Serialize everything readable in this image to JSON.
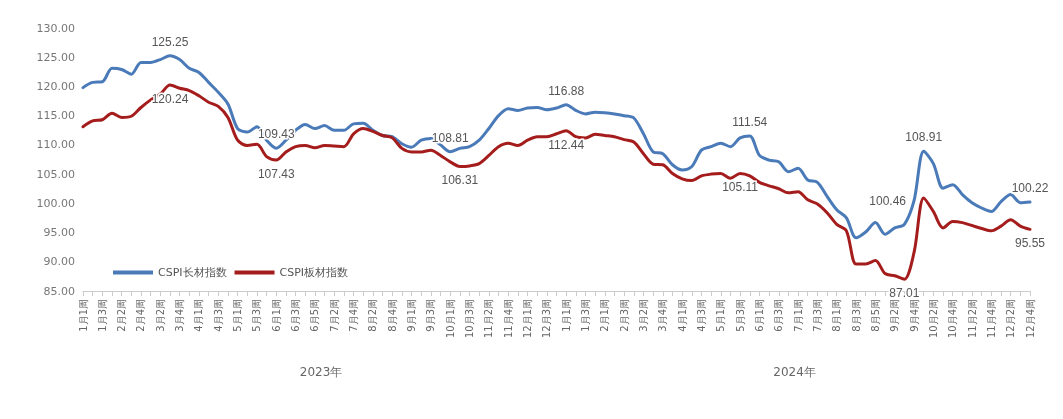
{
  "chart_data": {
    "type": "line",
    "categories": [
      "1月1周",
      null,
      "1月3周",
      null,
      "2月2周",
      null,
      "2月4周",
      null,
      "3月2周",
      null,
      "3月4周",
      null,
      "4月1周",
      null,
      "4月3周",
      null,
      "5月1周",
      null,
      "5月3周",
      null,
      "6月1周",
      null,
      "6月3周",
      null,
      "6月5周",
      null,
      "7月2周",
      null,
      "7月4周",
      null,
      "8月2周",
      null,
      "8月4周",
      null,
      "9月1周",
      null,
      "9月3周",
      null,
      "10月1周",
      null,
      "10月3周",
      null,
      "11月2周",
      null,
      "11月4周",
      null,
      "12月1周",
      null,
      "12月3周",
      null,
      "1月1周",
      null,
      "1月3周",
      null,
      "2月1周",
      null,
      "2月3周",
      null,
      "3月2周",
      null,
      "3月4周",
      null,
      "4月1周",
      null,
      "4月3周",
      null,
      "5月1周",
      null,
      "5月3周",
      null,
      "6月1周",
      null,
      "6月3周",
      null,
      "7月1周",
      null,
      "7月3周",
      null,
      "8月1周",
      null,
      "8月3周",
      null,
      "8月5周",
      null,
      "9月2周",
      null,
      "9月4周",
      null,
      "10月2周",
      null,
      "10月4周",
      null,
      "11月2周",
      null,
      "11月4周",
      null,
      "12月2周",
      null,
      "12月4周"
    ],
    "series": [
      {
        "name": "CSPI长材指数",
        "color": "#4a7ab8",
        "values": [
          119.8,
          120.7,
          120.8,
          123.1,
          122.9,
          122.1,
          124.1,
          124.1,
          124.6,
          125.25,
          124.6,
          123.1,
          122.4,
          120.7,
          119.0,
          117.0,
          112.8,
          112.2,
          113.1,
          110.8,
          109.43,
          110.8,
          112.5,
          113.5,
          112.8,
          113.3,
          112.5,
          112.5,
          113.6,
          113.7,
          112.5,
          111.6,
          111.4,
          110.2,
          109.6,
          110.8,
          111.1,
          110.0,
          108.81,
          109.4,
          109.7,
          110.8,
          112.8,
          115.0,
          116.2,
          115.9,
          116.3,
          116.4,
          116.0,
          116.3,
          116.88,
          115.9,
          115.3,
          115.6,
          115.5,
          115.3,
          115.0,
          114.6,
          111.9,
          108.8,
          108.5,
          106.6,
          105.7,
          106.3,
          109.1,
          109.7,
          110.3,
          109.7,
          111.2,
          111.54,
          108.2,
          107.4,
          107.1,
          105.4,
          106.0,
          104.0,
          103.6,
          101.2,
          98.9,
          97.5,
          94.1,
          95.1,
          96.7,
          94.7,
          95.8,
          96.4,
          100.46,
          108.91,
          106.8,
          102.6,
          103.2,
          101.5,
          100.1,
          99.2,
          98.6,
          100.3,
          101.5,
          100.1,
          100.22
        ],
        "value_labels": [
          null,
          null,
          null,
          null,
          null,
          null,
          null,
          null,
          null,
          "125.25",
          null,
          null,
          null,
          null,
          null,
          null,
          null,
          null,
          null,
          null,
          "109.43",
          null,
          null,
          null,
          null,
          null,
          null,
          null,
          null,
          null,
          null,
          null,
          null,
          null,
          null,
          null,
          null,
          null,
          "108.81",
          null,
          null,
          null,
          null,
          null,
          null,
          null,
          null,
          null,
          null,
          null,
          "116.88",
          null,
          null,
          null,
          null,
          null,
          null,
          null,
          null,
          null,
          null,
          null,
          null,
          null,
          null,
          null,
          null,
          null,
          null,
          "111.54",
          null,
          null,
          null,
          null,
          null,
          null,
          null,
          null,
          null,
          null,
          null,
          null,
          null,
          null,
          null,
          null,
          "100.46",
          "108.91",
          null,
          null,
          null,
          null,
          null,
          null,
          null,
          null,
          null,
          null,
          "100.22"
        ]
      },
      {
        "name": "CSPI板材指数",
        "color": "#a51c1c",
        "values": [
          113.1,
          114.1,
          114.3,
          115.4,
          114.7,
          114.9,
          116.4,
          117.7,
          118.7,
          120.24,
          119.7,
          119.3,
          118.4,
          117.3,
          116.6,
          114.7,
          110.8,
          109.9,
          110.1,
          108.0,
          107.43,
          108.8,
          109.7,
          109.9,
          109.5,
          109.9,
          109.8,
          109.7,
          111.9,
          112.8,
          112.3,
          111.6,
          111.2,
          109.4,
          108.8,
          108.8,
          109.1,
          108.2,
          107.1,
          106.31,
          106.4,
          106.8,
          108.2,
          109.7,
          110.3,
          109.9,
          110.8,
          111.4,
          111.4,
          111.9,
          112.44,
          111.4,
          111.2,
          111.8,
          111.6,
          111.4,
          110.9,
          110.5,
          108.5,
          106.7,
          106.6,
          105.1,
          104.2,
          103.9,
          104.7,
          105.0,
          105.1,
          104.3,
          105.11,
          104.7,
          103.6,
          103.0,
          102.5,
          101.8,
          102.0,
          100.6,
          99.9,
          98.4,
          96.4,
          95.3,
          89.6,
          89.6,
          90.2,
          88.0,
          87.6,
          87.01,
          91.6,
          100.9,
          98.6,
          95.8,
          96.9,
          96.7,
          96.2,
          95.7,
          95.3,
          96.1,
          97.2,
          96.1,
          95.55
        ],
        "value_labels": [
          null,
          null,
          null,
          null,
          null,
          null,
          null,
          null,
          null,
          "120.24",
          null,
          null,
          null,
          null,
          null,
          null,
          null,
          null,
          null,
          null,
          "107.43",
          null,
          null,
          null,
          null,
          null,
          null,
          null,
          null,
          null,
          null,
          null,
          null,
          null,
          null,
          null,
          null,
          null,
          null,
          "106.31",
          null,
          null,
          null,
          null,
          null,
          null,
          null,
          null,
          null,
          null,
          "112.44",
          null,
          null,
          null,
          null,
          null,
          null,
          null,
          null,
          null,
          null,
          null,
          null,
          null,
          null,
          null,
          null,
          null,
          "105.11",
          null,
          null,
          null,
          null,
          null,
          null,
          null,
          null,
          null,
          null,
          null,
          null,
          null,
          null,
          null,
          null,
          "87.01",
          null,
          null,
          null,
          null,
          null,
          null,
          null,
          null,
          null,
          null,
          null,
          null,
          "95.55"
        ]
      }
    ],
    "ylim": [
      85,
      130
    ],
    "yticks": [
      {
        "value": 85,
        "label": "85.00"
      },
      {
        "value": 90,
        "label": "90.00"
      },
      {
        "value": 95,
        "label": "95.00"
      },
      {
        "value": 100,
        "label": "100.00"
      },
      {
        "value": 105,
        "label": "105.00"
      },
      {
        "value": 110,
        "label": "110.00"
      },
      {
        "value": 115,
        "label": "115.00"
      },
      {
        "value": 120,
        "label": "120.00"
      },
      {
        "value": 125,
        "label": "125.00"
      },
      {
        "value": 130,
        "label": "130.00"
      }
    ],
    "annotations": [
      "2023年",
      "2024年"
    ],
    "legend": "bottom left",
    "grid": false,
    "marker": "none",
    "line_style": "solid"
  }
}
